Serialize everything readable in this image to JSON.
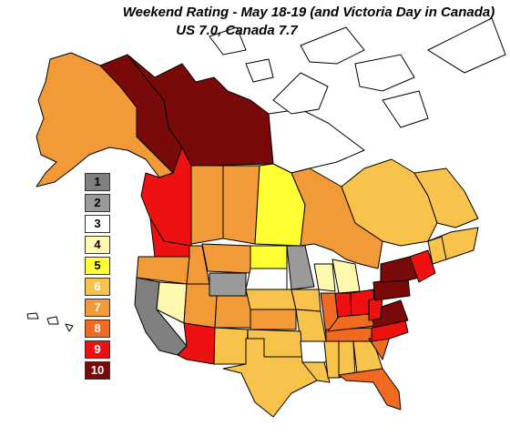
{
  "title": "Weekend Rating - May 18-19 (and  Victoria Day in Canada)",
  "subtitle": "US 7.0, Canada 7.7",
  "legend": [
    {
      "label": "1",
      "color": "#808080",
      "text_color": "#000000"
    },
    {
      "label": "2",
      "color": "#9a9a9a",
      "text_color": "#000000"
    },
    {
      "label": "3",
      "color": "#ffffff",
      "text_color": "#000000"
    },
    {
      "label": "4",
      "color": "#fff9b0",
      "text_color": "#000000"
    },
    {
      "label": "5",
      "color": "#ffff33",
      "text_color": "#000000"
    },
    {
      "label": "6",
      "color": "#f7c34a",
      "text_color": "#ffffff"
    },
    {
      "label": "7",
      "color": "#f29a38",
      "text_color": "#ffffff"
    },
    {
      "label": "8",
      "color": "#f06a21",
      "text_color": "#ffffff"
    },
    {
      "label": "9",
      "color": "#ee1111",
      "text_color": "#ffffff"
    },
    {
      "label": "10",
      "color": "#7a0a0a",
      "text_color": "#ffffff"
    }
  ],
  "regions": [
    {
      "name": "Alaska",
      "rating": 7
    },
    {
      "name": "Yukon",
      "rating": 10
    },
    {
      "name": "Northwest Territories",
      "rating": 10
    },
    {
      "name": "Nunavut",
      "rating": 3
    },
    {
      "name": "British Columbia",
      "rating": 9
    },
    {
      "name": "Alberta",
      "rating": 7
    },
    {
      "name": "Saskatchewan",
      "rating": 7
    },
    {
      "name": "Manitoba",
      "rating": 5
    },
    {
      "name": "Ontario",
      "rating": 7
    },
    {
      "name": "Quebec",
      "rating": 6
    },
    {
      "name": "Newfoundland and Labrador",
      "rating": 6
    },
    {
      "name": "Maritimes",
      "rating": 6
    },
    {
      "name": "Washington",
      "rating": 9
    },
    {
      "name": "Oregon",
      "rating": 7
    },
    {
      "name": "Idaho",
      "rating": 7
    },
    {
      "name": "Montana",
      "rating": 7
    },
    {
      "name": "Wyoming",
      "rating": 2
    },
    {
      "name": "North Dakota",
      "rating": 5
    },
    {
      "name": "South Dakota",
      "rating": 3
    },
    {
      "name": "Minnesota",
      "rating": 2
    },
    {
      "name": "California",
      "rating": 1
    },
    {
      "name": "Nevada",
      "rating": 4
    },
    {
      "name": "Utah",
      "rating": 7
    },
    {
      "name": "Colorado",
      "rating": 7
    },
    {
      "name": "Nebraska",
      "rating": 6
    },
    {
      "name": "Iowa",
      "rating": 6
    },
    {
      "name": "Wisconsin",
      "rating": 4
    },
    {
      "name": "Michigan",
      "rating": 4
    },
    {
      "name": "Arizona",
      "rating": 9
    },
    {
      "name": "New Mexico",
      "rating": 6
    },
    {
      "name": "Kansas",
      "rating": 7
    },
    {
      "name": "Missouri",
      "rating": 6
    },
    {
      "name": "Illinois",
      "rating": 8
    },
    {
      "name": "Indiana",
      "rating": 9
    },
    {
      "name": "Ohio",
      "rating": 9
    },
    {
      "name": "Oklahoma",
      "rating": 6
    },
    {
      "name": "Texas",
      "rating": 6
    },
    {
      "name": "Arkansas",
      "rating": 3
    },
    {
      "name": "Louisiana",
      "rating": 6
    },
    {
      "name": "Mississippi",
      "rating": 6
    },
    {
      "name": "Alabama",
      "rating": 6
    },
    {
      "name": "Tennessee",
      "rating": 8
    },
    {
      "name": "Kentucky",
      "rating": 8
    },
    {
      "name": "Georgia",
      "rating": 6
    },
    {
      "name": "Florida",
      "rating": 8
    },
    {
      "name": "South Carolina",
      "rating": 8
    },
    {
      "name": "North Carolina",
      "rating": 9
    },
    {
      "name": "Virginia",
      "rating": 10
    },
    {
      "name": "West Virginia",
      "rating": 9
    },
    {
      "name": "Pennsylvania",
      "rating": 10
    },
    {
      "name": "New York",
      "rating": 10
    },
    {
      "name": "New England",
      "rating": 9
    },
    {
      "name": "Maine",
      "rating": 6
    },
    {
      "name": "Hawaii",
      "rating": 3
    }
  ]
}
